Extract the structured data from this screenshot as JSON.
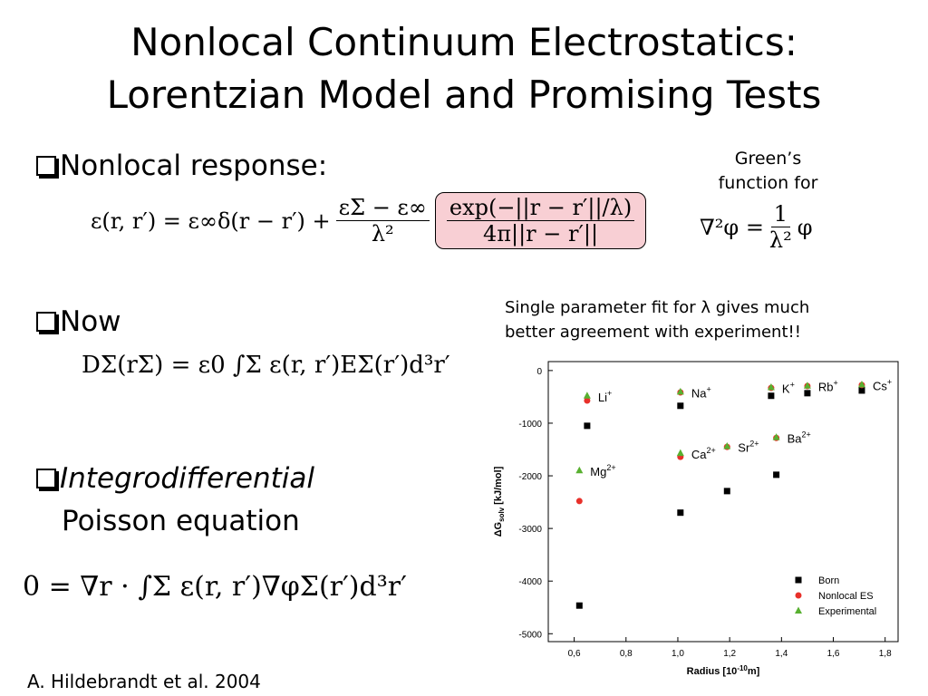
{
  "slide": {
    "title": [
      "Nonlocal Continuum Electrostatics:",
      "Lorentzian Model and Promising Tests"
    ],
    "bullet1": "Nonlocal response:",
    "eq1": {
      "lhs": "ε(r, r′) = ε∞δ(r − r′) +",
      "num1": "εΣ − ε∞",
      "den1": "λ²",
      "num2": "exp(−||r − r′||/λ)",
      "den2": "4π||r − r′||"
    },
    "green": {
      "note": [
        "Green’s",
        "function for"
      ],
      "lhs": "∇²φ =",
      "num": "1",
      "den": "λ²",
      "rhs": "φ"
    },
    "bullet2": "Now",
    "eq2": "DΣ(rΣ) = ε0 ∫Σ ε(r, r′)EΣ(r′)d³r′",
    "bullet3": [
      "Integrodifferential",
      "Poisson equation"
    ],
    "eq3": "0 = ∇r · ∫Σ ε(r, r′)∇φΣ(r′)d³r′",
    "fit_note": [
      "Single parameter fit for λ gives much",
      "better agreement with experiment!!"
    ],
    "citation": "A. Hildebrandt et al. 2004"
  },
  "chart_data": {
    "type": "scatter",
    "xlabel": {
      "text": "Radius [10",
      "sup": "-10",
      "tail": "m]"
    },
    "ylabel": {
      "text": "ΔG",
      "sub": "solv",
      "tail": " [kJ/mol]"
    },
    "x": [
      0.65,
      1.01,
      1.36,
      1.5,
      1.71,
      0.62,
      1.01,
      1.19,
      1.38
    ],
    "point_labels": [
      {
        "text": "Li",
        "sup": "+"
      },
      {
        "text": "Na",
        "sup": "+"
      },
      {
        "text": "K",
        "sup": "+"
      },
      {
        "text": "Rb",
        "sup": "+"
      },
      {
        "text": "Cs",
        "sup": "+"
      },
      {
        "text": "Mg",
        "sup": "2+"
      },
      {
        "text": "Ca",
        "sup": "2+"
      },
      {
        "text": "Sr",
        "sup": "2+"
      },
      {
        "text": "Ba",
        "sup": "2+"
      }
    ],
    "series": [
      {
        "name": "Born",
        "color": "#000000",
        "marker": "square",
        "values": [
          -1050,
          -670,
          -480,
          -430,
          -380,
          -4465,
          -2700,
          -2290,
          -1980
        ]
      },
      {
        "name": "Nonlocal ES",
        "color": "#e8302a",
        "marker": "circle",
        "values": [
          -570,
          -415,
          -330,
          -295,
          -275,
          -2480,
          -1640,
          -1450,
          -1280
        ]
      },
      {
        "name": "Experimental",
        "color": "#58b030",
        "marker": "triangle",
        "values": [
          -480,
          -405,
          -320,
          -290,
          -270,
          -1900,
          -1570,
          -1440,
          -1270
        ]
      }
    ],
    "xlim": [
      0.5,
      1.85
    ],
    "ylim": [
      -5150,
      170
    ],
    "xticks": [
      {
        "value": 0.6,
        "label": "0,6"
      },
      {
        "value": 0.8,
        "label": "0,8"
      },
      {
        "value": 1.0,
        "label": "1,0"
      },
      {
        "value": 1.2,
        "label": "1,2"
      },
      {
        "value": 1.4,
        "label": "1,4"
      },
      {
        "value": 1.6,
        "label": "1,6"
      },
      {
        "value": 1.8,
        "label": "1,8"
      }
    ],
    "yticks": [
      0,
      -1000,
      -2000,
      -3000,
      -4000,
      -5000
    ],
    "legend": "lower right"
  }
}
